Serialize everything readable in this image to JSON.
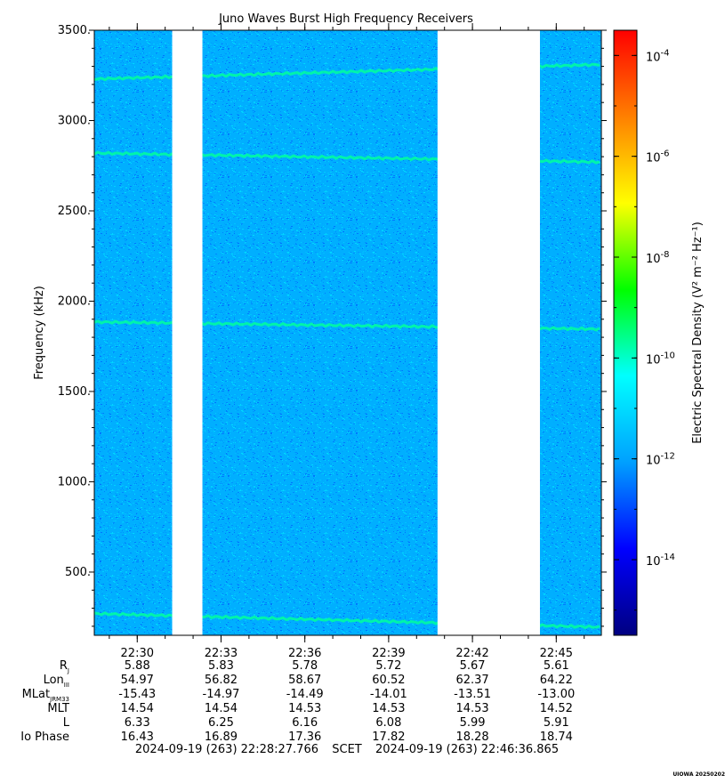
{
  "chart_data": {
    "type": "heatmap",
    "title": "Juno Waves Burst High Frequency Receivers",
    "ylabel": "Frequency (kHz)",
    "ylim": [
      150,
      3500
    ],
    "y_ticks": [
      "500.",
      "1000.",
      "1500.",
      "2000.",
      "2500.",
      "3000.",
      "3500."
    ],
    "y_tick_values": [
      500,
      1000,
      1500,
      2000,
      2500,
      3000,
      3500
    ],
    "x_time_range": [
      "22:28:27.766",
      "22:46:36.865"
    ],
    "x_ticks": [
      "22:30",
      "22:33",
      "22:36",
      "22:39",
      "22:42",
      "22:45"
    ],
    "data_gaps": [
      [
        "22:31:15",
        "22:32:20"
      ],
      [
        "22:40:45",
        "22:44:25"
      ]
    ],
    "colorbar": {
      "label": "Electric Spectral Density (V² m⁻² Hz⁻¹)",
      "log_range": [
        -15.5,
        -3.5
      ],
      "tick_exponents": [
        -14,
        -12,
        -10,
        -8,
        -6,
        -4
      ],
      "tick_base": "10",
      "colors": [
        "#000080",
        "#0000ff",
        "#00a0ff",
        "#00ffff",
        "#00ff00",
        "#ffff00",
        "#ff8000",
        "#ff0000"
      ]
    },
    "background_level_log": -11.8,
    "emission_lines": [
      {
        "freq_start": 3230,
        "freq_end": 3310
      },
      {
        "freq_start": 2820,
        "freq_end": 2770
      },
      {
        "freq_start": 1885,
        "freq_end": 1845
      },
      {
        "freq_start": 270,
        "freq_end": 195
      }
    ],
    "ephemeris": {
      "row_labels": [
        "R",
        "Lon",
        "MLat",
        "MLT",
        "L",
        "Io Phase"
      ],
      "row_label_subscripts": [
        "J",
        "III",
        "JRM33",
        "",
        "",
        ""
      ],
      "rows": [
        [
          "5.88",
          "5.83",
          "5.78",
          "5.72",
          "5.67",
          "5.61"
        ],
        [
          "54.97",
          "56.82",
          "58.67",
          "60.52",
          "62.37",
          "64.22"
        ],
        [
          "-15.43",
          "-14.97",
          "-14.49",
          "-14.01",
          "-13.51",
          "-13.00"
        ],
        [
          "14.54",
          "14.54",
          "14.53",
          "14.53",
          "14.53",
          "14.52"
        ],
        [
          "6.33",
          "6.25",
          "6.16",
          "6.08",
          "5.99",
          "5.91"
        ],
        [
          "16.43",
          "16.89",
          "17.36",
          "17.82",
          "18.28",
          "18.74"
        ]
      ]
    },
    "footer": {
      "start": "2024-09-19 (263) 22:28:27.766",
      "frame": "SCET",
      "end": "2024-09-19 (263) 22:46:36.865"
    },
    "credit": "UIOWA 20250202"
  }
}
